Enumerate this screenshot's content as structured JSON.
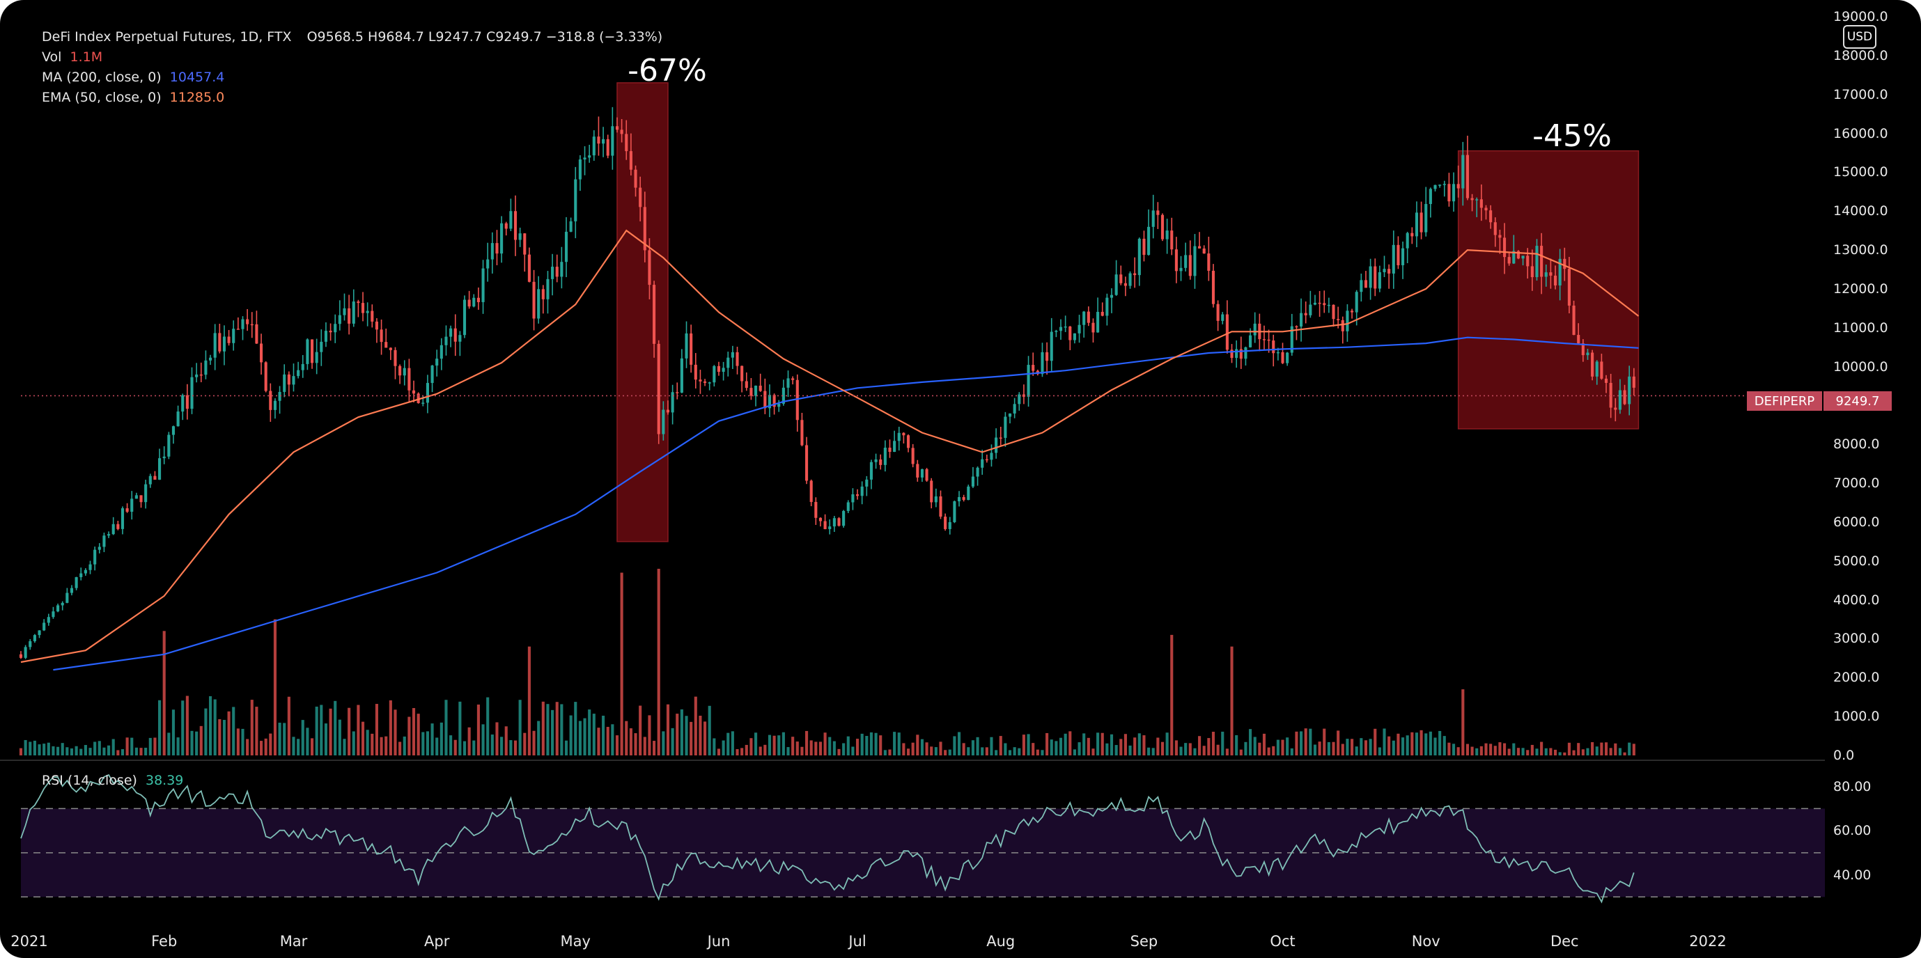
{
  "header": {
    "title": "DeFi Index Perpetual Futures, 1D, FTX",
    "ohlc": "O9568.5  H9684.7  L9247.7  C9249.7  −318.8 (−3.33%)",
    "vol_label": "Vol",
    "vol_value": "1.1M",
    "ma_label": "MA (200, close, 0)",
    "ma_value": "10457.4",
    "ema_label": "EMA (50, close, 0)",
    "ema_value": "11285.0",
    "rsi_label": "RSI (14, close)",
    "rsi_value": "38.39"
  },
  "currency_button": "USD",
  "last_price": {
    "symbol": "DEFIPERP",
    "value": "9249.7",
    "y": 9249.7
  },
  "annotations": [
    {
      "text": "-67%",
      "x_start": "2021-05-10",
      "x_end": "2021-05-21",
      "y_low": 5500,
      "y_high": 17300
    },
    {
      "text": "-45%",
      "x_start": "2021-11-08",
      "x_end": "2021-12-17",
      "y_low": 8400,
      "y_high": 15550
    }
  ],
  "colors": {
    "up": "#26a69a",
    "down": "#ef5350",
    "ma": "#2962ff",
    "ema": "#ff7b52",
    "rsi": "#7fbfb7",
    "rsi_band": "#1a0a2a",
    "highlight": "#6b0b10"
  },
  "chart_data": {
    "type": "candlestick",
    "x_range": [
      "2021-01-01",
      "2022-01-01"
    ],
    "ylim": [
      0,
      19000
    ],
    "y_ticks": [
      "0.0",
      "1000.0",
      "2000.0",
      "3000.0",
      "4000.0",
      "5000.0",
      "6000.0",
      "7000.0",
      "8000.0",
      "9000.0",
      "10000.0",
      "11000.0",
      "12000.0",
      "13000.0",
      "14000.0",
      "15000.0",
      "16000.0",
      "17000.0",
      "18000.0",
      "19000.0"
    ],
    "x_ticks": [
      {
        "date": "2021-01-01",
        "label": "2021"
      },
      {
        "date": "2021-02-01",
        "label": "Feb"
      },
      {
        "date": "2021-03-01",
        "label": "Mar"
      },
      {
        "date": "2021-04-01",
        "label": "Apr"
      },
      {
        "date": "2021-05-01",
        "label": "May"
      },
      {
        "date": "2021-06-01",
        "label": "Jun"
      },
      {
        "date": "2021-07-01",
        "label": "Jul"
      },
      {
        "date": "2021-08-01",
        "label": "Aug"
      },
      {
        "date": "2021-09-01",
        "label": "Sep"
      },
      {
        "date": "2021-10-01",
        "label": "Oct"
      },
      {
        "date": "2021-11-01",
        "label": "Nov"
      },
      {
        "date": "2021-12-01",
        "label": "Dec"
      },
      {
        "date": "2022-01-01",
        "label": "2022"
      }
    ],
    "price_path": [
      [
        "2021-01-01",
        2600
      ],
      [
        "2021-01-08",
        3600
      ],
      [
        "2021-01-15",
        4800
      ],
      [
        "2021-01-22",
        6000
      ],
      [
        "2021-01-29",
        7000
      ],
      [
        "2021-02-05",
        9000
      ],
      [
        "2021-02-12",
        10500
      ],
      [
        "2021-02-19",
        11300
      ],
      [
        "2021-02-24",
        9200
      ],
      [
        "2021-03-01",
        10000
      ],
      [
        "2021-03-08",
        10800
      ],
      [
        "2021-03-15",
        11400
      ],
      [
        "2021-03-22",
        10500
      ],
      [
        "2021-03-28",
        9000
      ],
      [
        "2021-04-03",
        10500
      ],
      [
        "2021-04-10",
        12000
      ],
      [
        "2021-04-17",
        14300
      ],
      [
        "2021-04-22",
        11500
      ],
      [
        "2021-04-27",
        12500
      ],
      [
        "2021-05-03",
        15500
      ],
      [
        "2021-05-08",
        15800
      ],
      [
        "2021-05-11",
        16500
      ],
      [
        "2021-05-14",
        15000
      ],
      [
        "2021-05-17",
        12000
      ],
      [
        "2021-05-19",
        8500
      ],
      [
        "2021-05-21",
        8800
      ],
      [
        "2021-05-25",
        10500
      ],
      [
        "2021-05-29",
        9500
      ],
      [
        "2021-06-03",
        10200
      ],
      [
        "2021-06-10",
        9200
      ],
      [
        "2021-06-17",
        9400
      ],
      [
        "2021-06-21",
        6500
      ],
      [
        "2021-06-25",
        5800
      ],
      [
        "2021-06-30",
        6600
      ],
      [
        "2021-07-05",
        7500
      ],
      [
        "2021-07-10",
        8200
      ],
      [
        "2021-07-16",
        7000
      ],
      [
        "2021-07-20",
        5900
      ],
      [
        "2021-07-25",
        7000
      ],
      [
        "2021-07-31",
        8000
      ],
      [
        "2021-08-07",
        9800
      ],
      [
        "2021-08-14",
        11000
      ],
      [
        "2021-08-21",
        11200
      ],
      [
        "2021-08-28",
        12300
      ],
      [
        "2021-09-04",
        13900
      ],
      [
        "2021-09-08",
        12300
      ],
      [
        "2021-09-14",
        13000
      ],
      [
        "2021-09-20",
        10000
      ],
      [
        "2021-09-25",
        10800
      ],
      [
        "2021-09-30",
        10200
      ],
      [
        "2021-10-07",
        11800
      ],
      [
        "2021-10-14",
        11200
      ],
      [
        "2021-10-21",
        12400
      ],
      [
        "2021-10-28",
        13000
      ],
      [
        "2021-11-03",
        14500
      ],
      [
        "2021-11-09",
        15000
      ],
      [
        "2021-11-13",
        13800
      ],
      [
        "2021-11-20",
        12800
      ],
      [
        "2021-11-27",
        12700
      ],
      [
        "2021-12-01",
        12300
      ],
      [
        "2021-12-04",
        10500
      ],
      [
        "2021-12-08",
        9800
      ],
      [
        "2021-12-12",
        9000
      ],
      [
        "2021-12-16",
        9570
      ]
    ],
    "ma200_path": [
      [
        "2021-01-08",
        2200
      ],
      [
        "2021-02-01",
        2600
      ],
      [
        "2021-03-01",
        3600
      ],
      [
        "2021-04-01",
        4700
      ],
      [
        "2021-05-01",
        6200
      ],
      [
        "2021-05-15",
        7300
      ],
      [
        "2021-06-01",
        8600
      ],
      [
        "2021-06-15",
        9100
      ],
      [
        "2021-07-01",
        9450
      ],
      [
        "2021-07-15",
        9600
      ],
      [
        "2021-08-01",
        9750
      ],
      [
        "2021-08-15",
        9900
      ],
      [
        "2021-09-01",
        10150
      ],
      [
        "2021-09-15",
        10350
      ],
      [
        "2021-10-01",
        10450
      ],
      [
        "2021-10-15",
        10500
      ],
      [
        "2021-11-01",
        10600
      ],
      [
        "2021-11-10",
        10750
      ],
      [
        "2021-11-20",
        10700
      ],
      [
        "2021-12-01",
        10600
      ],
      [
        "2021-12-17",
        10480
      ]
    ],
    "ema50_path": [
      [
        "2021-01-01",
        2400
      ],
      [
        "2021-01-15",
        2700
      ],
      [
        "2021-02-01",
        4100
      ],
      [
        "2021-02-15",
        6200
      ],
      [
        "2021-03-01",
        7800
      ],
      [
        "2021-03-15",
        8700
      ],
      [
        "2021-04-01",
        9300
      ],
      [
        "2021-04-15",
        10100
      ],
      [
        "2021-05-01",
        11600
      ],
      [
        "2021-05-12",
        13500
      ],
      [
        "2021-05-20",
        12800
      ],
      [
        "2021-06-01",
        11400
      ],
      [
        "2021-06-15",
        10200
      ],
      [
        "2021-07-01",
        9200
      ],
      [
        "2021-07-15",
        8300
      ],
      [
        "2021-07-28",
        7800
      ],
      [
        "2021-08-10",
        8300
      ],
      [
        "2021-08-25",
        9400
      ],
      [
        "2021-09-07",
        10200
      ],
      [
        "2021-09-20",
        10900
      ],
      [
        "2021-10-01",
        10900
      ],
      [
        "2021-10-15",
        11100
      ],
      [
        "2021-11-01",
        12000
      ],
      [
        "2021-11-10",
        13000
      ],
      [
        "2021-11-25",
        12900
      ],
      [
        "2021-12-05",
        12400
      ],
      [
        "2021-12-17",
        11300
      ]
    ],
    "volume_spikes": [
      {
        "date": "2021-02-01",
        "value": 3200,
        "dir": "down"
      },
      {
        "date": "2021-02-25",
        "value": 3500,
        "dir": "down"
      },
      {
        "date": "2021-04-21",
        "value": 2800,
        "dir": "down"
      },
      {
        "date": "2021-05-11",
        "value": 4700,
        "dir": "down"
      },
      {
        "date": "2021-05-19",
        "value": 4800,
        "dir": "down"
      },
      {
        "date": "2021-09-07",
        "value": 3100,
        "dir": "down"
      },
      {
        "date": "2021-09-20",
        "value": 2800,
        "dir": "down"
      },
      {
        "date": "2021-11-09",
        "value": 1700,
        "dir": "down"
      }
    ],
    "rsi": {
      "ylim": [
        20,
        90
      ],
      "ticks": [
        "80.00",
        "60.00",
        "40.00"
      ],
      "band": [
        30,
        70
      ],
      "path": [
        [
          "2021-01-01",
          60
        ],
        [
          "2021-01-08",
          82
        ],
        [
          "2021-01-15",
          80
        ],
        [
          "2021-01-22",
          85
        ],
        [
          "2021-01-29",
          70
        ],
        [
          "2021-02-05",
          78
        ],
        [
          "2021-02-12",
          72
        ],
        [
          "2021-02-19",
          75
        ],
        [
          "2021-02-24",
          55
        ],
        [
          "2021-03-01",
          60
        ],
        [
          "2021-03-08",
          58
        ],
        [
          "2021-03-15",
          56
        ],
        [
          "2021-03-22",
          50
        ],
        [
          "2021-03-28",
          38
        ],
        [
          "2021-04-03",
          55
        ],
        [
          "2021-04-10",
          62
        ],
        [
          "2021-04-17",
          72
        ],
        [
          "2021-04-22",
          48
        ],
        [
          "2021-04-27",
          55
        ],
        [
          "2021-05-03",
          68
        ],
        [
          "2021-05-08",
          62
        ],
        [
          "2021-05-11",
          65
        ],
        [
          "2021-05-14",
          55
        ],
        [
          "2021-05-19",
          32
        ],
        [
          "2021-05-25",
          48
        ],
        [
          "2021-06-03",
          46
        ],
        [
          "2021-06-10",
          44
        ],
        [
          "2021-06-17",
          42
        ],
        [
          "2021-06-25",
          33
        ],
        [
          "2021-07-05",
          44
        ],
        [
          "2021-07-12",
          50
        ],
        [
          "2021-07-20",
          35
        ],
        [
          "2021-07-31",
          55
        ],
        [
          "2021-08-07",
          63
        ],
        [
          "2021-08-14",
          70
        ],
        [
          "2021-08-21",
          68
        ],
        [
          "2021-08-28",
          72
        ],
        [
          "2021-09-04",
          72
        ],
        [
          "2021-09-10",
          56
        ],
        [
          "2021-09-14",
          62
        ],
        [
          "2021-09-20",
          40
        ],
        [
          "2021-09-30",
          44
        ],
        [
          "2021-10-07",
          56
        ],
        [
          "2021-10-14",
          50
        ],
        [
          "2021-10-21",
          60
        ],
        [
          "2021-10-28",
          64
        ],
        [
          "2021-11-03",
          70
        ],
        [
          "2021-11-09",
          68
        ],
        [
          "2021-11-13",
          50
        ],
        [
          "2021-11-20",
          44
        ],
        [
          "2021-11-27",
          45
        ],
        [
          "2021-12-01",
          42
        ],
        [
          "2021-12-08",
          30
        ],
        [
          "2021-12-12",
          33
        ],
        [
          "2021-12-16",
          38.39
        ]
      ]
    }
  }
}
